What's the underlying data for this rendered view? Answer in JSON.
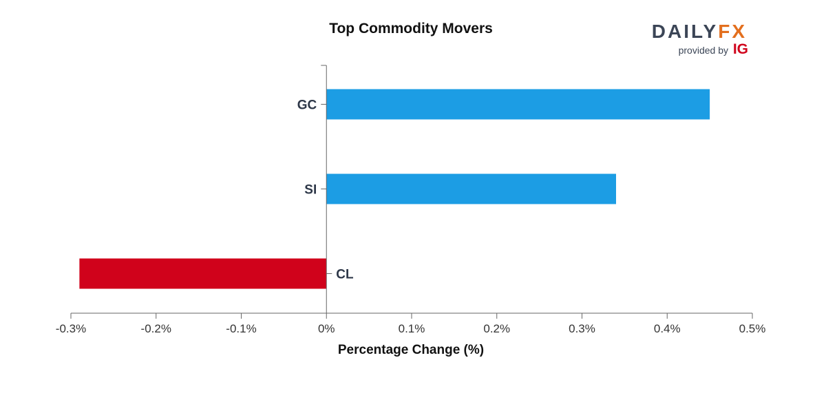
{
  "brand": {
    "word_left": "DAILY",
    "word_right": "FX",
    "provided_by": "provided by",
    "partner": "IG"
  },
  "colors": {
    "positive": "#1c9de4",
    "negative": "#d0021b",
    "axis": "#666666"
  },
  "chart_data": {
    "type": "bar",
    "orientation": "horizontal",
    "title": "Top Commodity Movers",
    "xlabel": "Percentage Change (%)",
    "ylabel": "",
    "categories": [
      "GC",
      "SI",
      "CL"
    ],
    "values": [
      0.45,
      0.34,
      -0.29
    ],
    "xlim": [
      -0.3,
      0.5
    ],
    "xticks": [
      -0.3,
      -0.2,
      -0.1,
      0,
      0.1,
      0.2,
      0.3,
      0.4,
      0.5
    ],
    "xtick_labels": [
      "-0.3%",
      "-0.2%",
      "-0.1%",
      "0%",
      "0.1%",
      "0.2%",
      "0.3%",
      "0.4%",
      "0.5%"
    ],
    "grid": false,
    "legend": "none"
  }
}
